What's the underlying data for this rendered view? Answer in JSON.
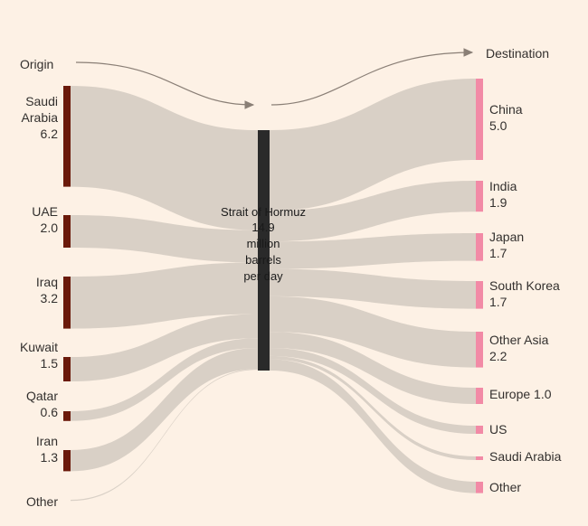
{
  "header": {
    "origin_label": "Origin",
    "destination_label": "Destination"
  },
  "center": {
    "lines": [
      "Strait of Hormuz",
      "14.9",
      "million",
      "barrels",
      "per day"
    ]
  },
  "colors": {
    "background": "#fdf1e5",
    "flow": "#d9d0c6",
    "origin_bar": "#6b1a0b",
    "destination_bar": "#f28aa6",
    "strait_bar": "#2a2a2a",
    "arrow": "#8a7f76"
  },
  "chart_data": {
    "type": "sankey",
    "unit": "million barrels per day",
    "total": 14.9,
    "origins": [
      {
        "lines": [
          "Saudi",
          "Arabia",
          "6.2"
        ],
        "value": 6.2
      },
      {
        "lines": [
          "UAE",
          "2.0"
        ],
        "value": 2.0
      },
      {
        "lines": [
          "Iraq",
          "3.2"
        ],
        "value": 3.2
      },
      {
        "lines": [
          "Kuwait",
          "1.5"
        ],
        "value": 1.5
      },
      {
        "lines": [
          "Qatar",
          "0.6"
        ],
        "value": 0.6
      },
      {
        "lines": [
          "Iran",
          "1.3"
        ],
        "value": 1.3
      },
      {
        "lines": [
          "Other"
        ],
        "value": 0.05
      }
    ],
    "destinations": [
      {
        "lines": [
          "China",
          "5.0"
        ],
        "value": 5.0
      },
      {
        "lines": [
          "India",
          "1.9"
        ],
        "value": 1.9
      },
      {
        "lines": [
          "Japan",
          "1.7"
        ],
        "value": 1.7
      },
      {
        "lines": [
          "South Korea",
          "1.7"
        ],
        "value": 1.7
      },
      {
        "lines": [
          "Other Asia",
          "2.2"
        ],
        "value": 2.2
      },
      {
        "lines": [
          "Europe 1.0"
        ],
        "value": 1.0
      },
      {
        "lines": [
          "US"
        ],
        "value": 0.5
      },
      {
        "lines": [
          "Saudi Arabia"
        ],
        "value": 0.2
      },
      {
        "lines": [
          "Other"
        ],
        "value": 0.7
      }
    ]
  }
}
